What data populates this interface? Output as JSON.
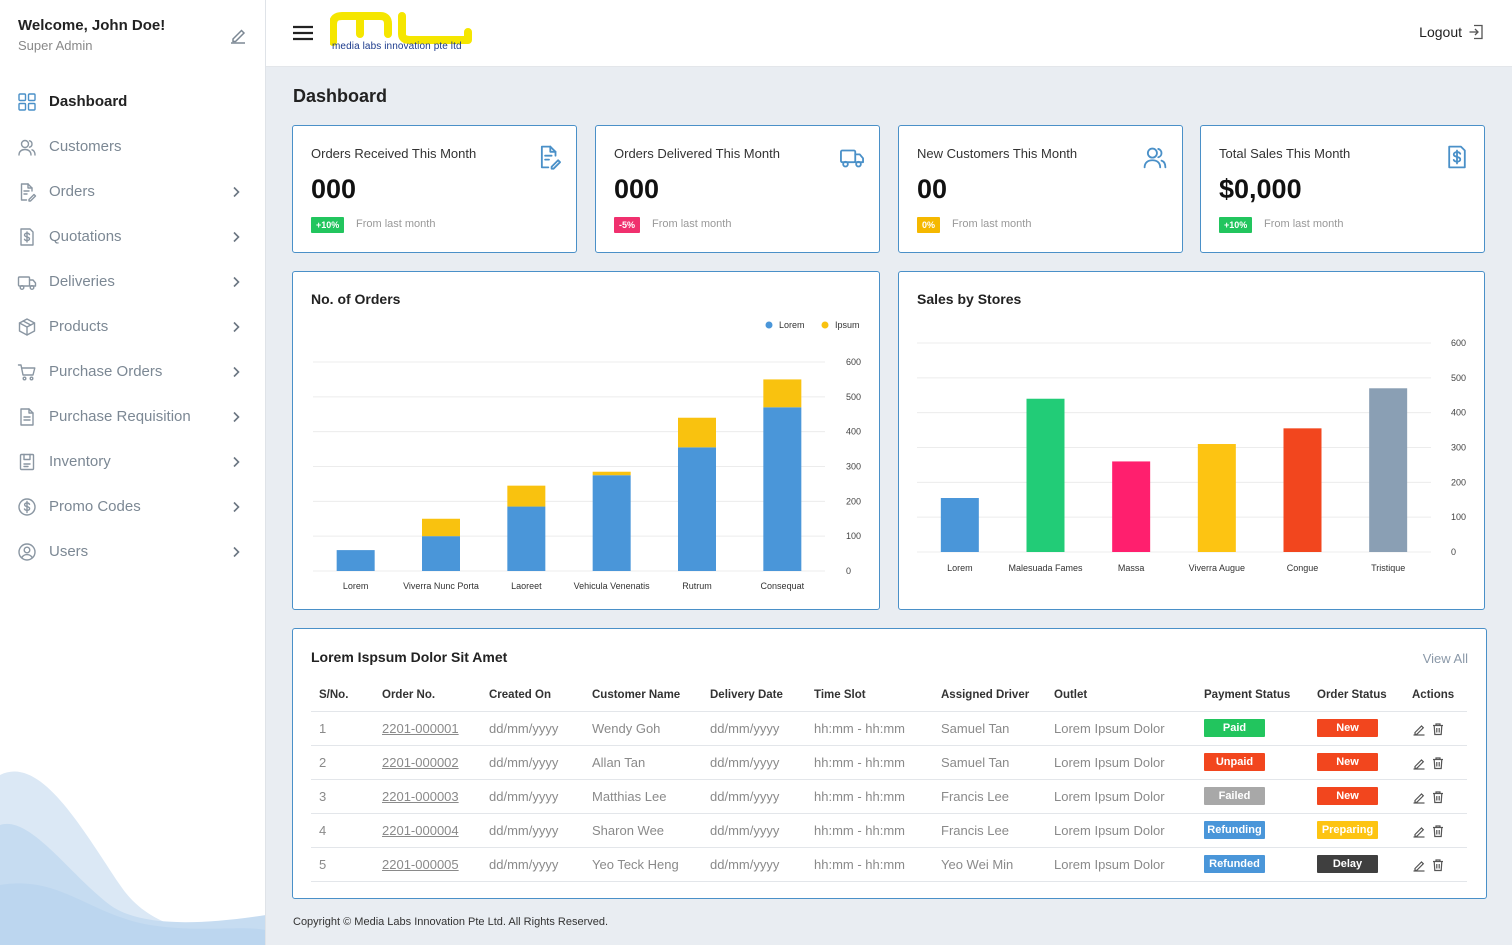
{
  "user": {
    "welcome": "Welcome, John Doe!",
    "role": "Super Admin"
  },
  "brand": {
    "tagline": "media labs innovation pte ltd",
    "logo_color": "#f5e600",
    "tagline_color": "#1b3a8c"
  },
  "header": {
    "logout_label": "Logout"
  },
  "sidebar": {
    "items": [
      {
        "label": "Dashboard",
        "icon": "dashboard-grid-icon",
        "active": true,
        "has_submenu": false
      },
      {
        "label": "Customers",
        "icon": "users-icon",
        "active": false,
        "has_submenu": false
      },
      {
        "label": "Orders",
        "icon": "document-edit-icon",
        "active": false,
        "has_submenu": true
      },
      {
        "label": "Quotations",
        "icon": "dollar-document-icon",
        "active": false,
        "has_submenu": true
      },
      {
        "label": "Deliveries",
        "icon": "truck-icon",
        "active": false,
        "has_submenu": true
      },
      {
        "label": "Products",
        "icon": "box-icon",
        "active": false,
        "has_submenu": true
      },
      {
        "label": "Purchase Orders",
        "icon": "cart-icon",
        "active": false,
        "has_submenu": true
      },
      {
        "label": "Purchase Requisition",
        "icon": "file-icon",
        "active": false,
        "has_submenu": true
      },
      {
        "label": "Inventory",
        "icon": "clipboard-icon",
        "active": false,
        "has_submenu": true
      },
      {
        "label": "Promo Codes",
        "icon": "dollar-circle-icon",
        "active": false,
        "has_submenu": true
      },
      {
        "label": "Users",
        "icon": "user-circle-icon",
        "active": false,
        "has_submenu": true
      }
    ]
  },
  "page": {
    "title": "Dashboard"
  },
  "stats": [
    {
      "title": "Orders Received This Month",
      "value": "000",
      "change": "+10%",
      "change_color": "#22c55e",
      "from": "From last month",
      "icon": "document-edit-icon"
    },
    {
      "title": "Orders Delivered This Month",
      "value": "000",
      "change": "-5%",
      "change_color": "#f0306e",
      "from": "From last month",
      "icon": "truck-icon"
    },
    {
      "title": "New Customers This Month",
      "value": "00",
      "change": "0%",
      "change_color": "#f5b800",
      "from": "From last month",
      "icon": "users-icon"
    },
    {
      "title": "Total Sales This Month",
      "value": "$0,000",
      "change": "+10%",
      "change_color": "#22c55e",
      "from": "From last month",
      "icon": "dollar-document-icon"
    }
  ],
  "chart_data": [
    {
      "type": "bar",
      "stacked": true,
      "title": "No. of Orders",
      "categories": [
        "Lorem",
        "Viverra Nunc Porta",
        "Laoreet",
        "Vehicula Venenatis",
        "Rutrum",
        "Consequat"
      ],
      "series": [
        {
          "name": "Lorem",
          "color": "#4a96d9",
          "values": [
            60,
            100,
            185,
            275,
            355,
            470
          ]
        },
        {
          "name": "Ipsum",
          "color": "#f9c20f",
          "values": [
            0,
            50,
            60,
            10,
            85,
            80
          ]
        }
      ],
      "y_ticks": [
        0,
        100,
        200,
        300,
        400,
        500,
        600
      ],
      "ylim": [
        0,
        600
      ],
      "y_axis_side": "right",
      "legend": "top-right",
      "grid": true
    },
    {
      "type": "bar",
      "title": "Sales by Stores",
      "categories": [
        "Lorem",
        "Malesuada Fames",
        "Massa",
        "Viverra Augue",
        "Congue",
        "Tristique"
      ],
      "values": [
        155,
        440,
        260,
        310,
        355,
        470
      ],
      "colors": [
        "#4a96d9",
        "#22cc77",
        "#ff1f6e",
        "#fdc412",
        "#f2461e",
        "#8a9fb4"
      ],
      "y_ticks": [
        0,
        100,
        200,
        300,
        400,
        500,
        600
      ],
      "ylim": [
        0,
        600
      ],
      "y_axis_side": "right",
      "grid": true
    }
  ],
  "table": {
    "title": "Lorem Ispsum Dolor Sit Amet",
    "view_all": "View All",
    "columns": [
      "S/No.",
      "Order No.",
      "Created On",
      "Customer Name",
      "Delivery Date",
      "Time Slot",
      "Assigned Driver",
      "Outlet",
      "Payment Status",
      "Order Status",
      "Actions"
    ],
    "rows": [
      {
        "sno": "1",
        "order_no": "2201-000001",
        "created": "dd/mm/yyyy",
        "customer": "Wendy Goh",
        "delivery": "dd/mm/yyyy",
        "slot": "hh:mm - hh:mm",
        "driver": "Samuel Tan",
        "outlet": "Lorem Ipsum Dolor",
        "payment": "Paid",
        "payment_color": "#22c55e",
        "status": "New",
        "status_color": "#f2461e"
      },
      {
        "sno": "2",
        "order_no": "2201-000002",
        "created": "dd/mm/yyyy",
        "customer": "Allan Tan",
        "delivery": "dd/mm/yyyy",
        "slot": "hh:mm - hh:mm",
        "driver": "Samuel Tan",
        "outlet": "Lorem Ipsum Dolor",
        "payment": "Unpaid",
        "payment_color": "#f2461e",
        "status": "New",
        "status_color": "#f2461e"
      },
      {
        "sno": "3",
        "order_no": "2201-000003",
        "created": "dd/mm/yyyy",
        "customer": "Matthias Lee",
        "delivery": "dd/mm/yyyy",
        "slot": "hh:mm - hh:mm",
        "driver": "Francis Lee",
        "outlet": "Lorem Ipsum Dolor",
        "payment": "Failed",
        "payment_color": "#a8a8a8",
        "status": "New",
        "status_color": "#f2461e"
      },
      {
        "sno": "4",
        "order_no": "2201-000004",
        "created": "dd/mm/yyyy",
        "customer": "Sharon Wee",
        "delivery": "dd/mm/yyyy",
        "slot": "hh:mm - hh:mm",
        "driver": "Francis Lee",
        "outlet": "Lorem Ipsum Dolor",
        "payment": "Refunding",
        "payment_color": "#4a96d9",
        "status": "Preparing",
        "status_color": "#fdc412"
      },
      {
        "sno": "5",
        "order_no": "2201-000005",
        "created": "dd/mm/yyyy",
        "customer": "Yeo Teck Heng",
        "delivery": "dd/mm/yyyy",
        "slot": "hh:mm - hh:mm",
        "driver": "Yeo Wei Min",
        "outlet": "Lorem Ipsum Dolor",
        "payment": "Refunded",
        "payment_color": "#4a96d9",
        "status": "Delay",
        "status_color": "#3f3f3f"
      }
    ]
  },
  "footer": {
    "copyright": "Copyright © Media Labs Innovation Pte Ltd. All Rights Reserved."
  }
}
